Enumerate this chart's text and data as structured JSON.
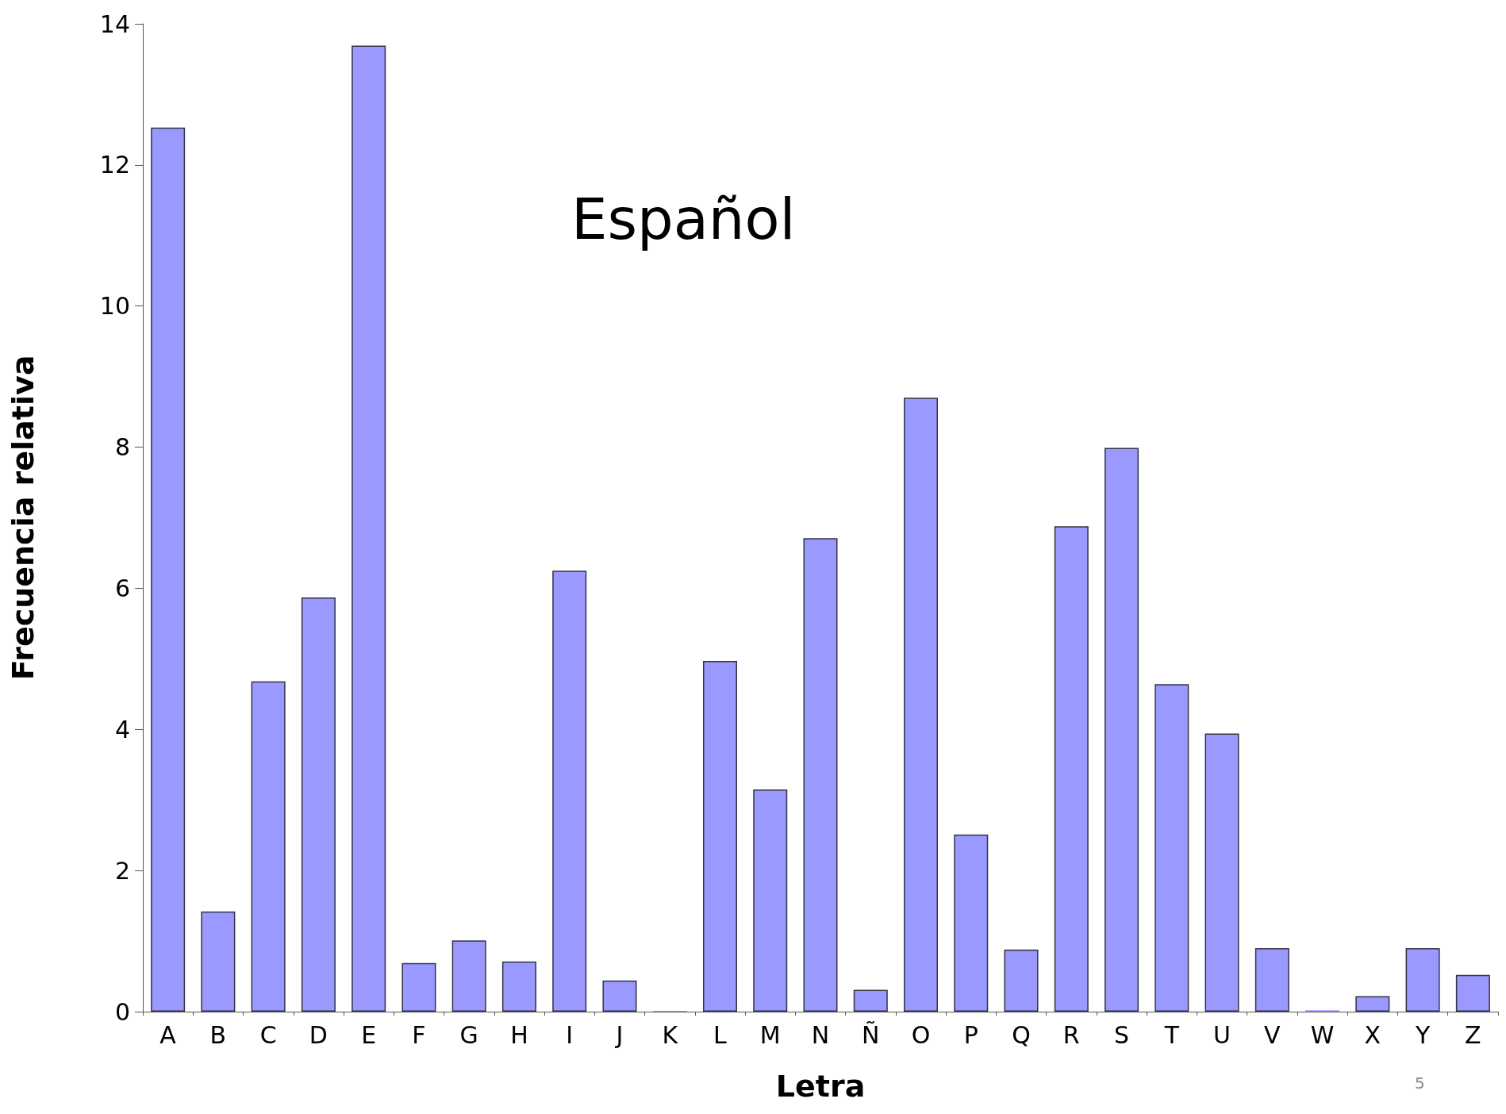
{
  "chart_data": {
    "type": "bar",
    "xlabel": "Letra",
    "ylabel": "Frecuencia relativa",
    "categories": [
      "A",
      "B",
      "C",
      "D",
      "E",
      "F",
      "G",
      "H",
      "I",
      "J",
      "K",
      "L",
      "M",
      "N",
      "Ñ",
      "O",
      "P",
      "Q",
      "R",
      "S",
      "T",
      "U",
      "V",
      "W",
      "X",
      "Y",
      "Z"
    ],
    "values": [
      12.53,
      1.42,
      4.68,
      5.87,
      13.69,
      0.69,
      1.01,
      0.71,
      6.25,
      0.44,
      0.01,
      4.97,
      3.15,
      6.71,
      0.31,
      8.7,
      2.51,
      0.88,
      6.88,
      7.99,
      4.64,
      3.94,
      0.9,
      0.02,
      0.22,
      0.9,
      0.52
    ],
    "color": "#9999ff",
    "ylim": [
      0,
      14
    ],
    "yticks": [
      0,
      2,
      4,
      6,
      8,
      10,
      12,
      14
    ],
    "grid": false,
    "annotations": [
      "Español",
      "5"
    ]
  }
}
